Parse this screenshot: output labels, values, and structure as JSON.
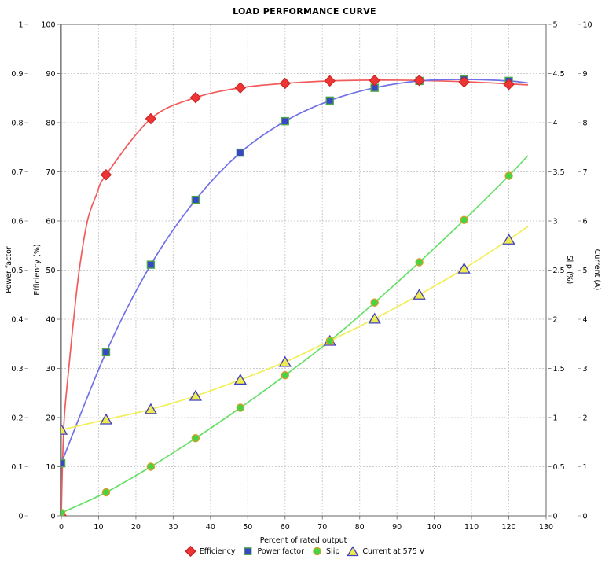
{
  "chart_data": {
    "type": "line",
    "title": "LOAD PERFORMANCE CURVE",
    "xlabel": "Percent of rated output",
    "xlim": [
      0,
      130
    ],
    "x_tick_step": 10,
    "grid": true,
    "legend_position": "bottom",
    "background": "#ffffff",
    "grid_color": "#cccccc",
    "x": [
      0,
      12,
      24,
      36,
      48,
      60,
      72,
      84,
      96,
      108,
      120
    ],
    "axes": [
      {
        "id": "power_factor",
        "label": "Power factor",
        "side": "left",
        "min": 0,
        "max": 1,
        "tick_step": 0.1
      },
      {
        "id": "efficiency",
        "label": "Efficiency (%)",
        "side": "left",
        "min": 0,
        "max": 100,
        "tick_step": 10
      },
      {
        "id": "slip",
        "label": "Slip (%)",
        "side": "right",
        "min": 0,
        "max": 5,
        "tick_step": 0.5
      },
      {
        "id": "current",
        "label": "Current (A)",
        "side": "right",
        "min": 0,
        "max": 10,
        "tick_step": 1
      }
    ],
    "series": [
      {
        "name": "Efficiency",
        "axis": "efficiency",
        "marker": "diamond",
        "line_color": "#f15b5b",
        "marker_fill": "#ee3434",
        "marker_stroke": "#c62222",
        "values": [
          0,
          69.4,
          80.8,
          85.1,
          87.1,
          88.0,
          88.5,
          88.6,
          88.6,
          88.3,
          87.8
        ],
        "curve": [
          [
            0,
            0
          ],
          [
            0.3,
            10
          ],
          [
            0.8,
            20
          ],
          [
            2,
            30
          ],
          [
            3.3,
            40
          ],
          [
            4.8,
            50
          ],
          [
            7,
            60
          ],
          [
            9.5,
            65.5
          ],
          [
            12,
            69.4
          ],
          [
            24,
            80.8
          ],
          [
            36,
            85.1
          ],
          [
            48,
            87.1
          ],
          [
            60,
            88.0
          ],
          [
            72,
            88.5
          ],
          [
            84,
            88.65
          ],
          [
            96,
            88.6
          ],
          [
            108,
            88.35
          ],
          [
            120,
            87.9
          ],
          [
            125,
            87.7
          ]
        ]
      },
      {
        "name": "Power factor",
        "axis": "power_factor",
        "marker": "square",
        "line_color": "#7070e8",
        "marker_fill": "#3a46c8",
        "marker_stroke": "#4aa84a",
        "values": [
          0.107,
          0.333,
          0.511,
          0.643,
          0.739,
          0.803,
          0.845,
          0.871,
          0.885,
          0.888,
          0.885
        ],
        "curve": [
          [
            0,
            0.107
          ],
          [
            12,
            0.333
          ],
          [
            24,
            0.511
          ],
          [
            36,
            0.643
          ],
          [
            48,
            0.739
          ],
          [
            60,
            0.803
          ],
          [
            72,
            0.845
          ],
          [
            84,
            0.871
          ],
          [
            96,
            0.885
          ],
          [
            108,
            0.888
          ],
          [
            120,
            0.885
          ],
          [
            125,
            0.881
          ]
        ]
      },
      {
        "name": "Slip",
        "axis": "slip",
        "marker": "circle",
        "line_color": "#66df66",
        "marker_fill": "#44d444",
        "marker_stroke": "#cfa02a",
        "values": [
          0.03,
          0.24,
          0.5,
          0.79,
          1.1,
          1.43,
          1.78,
          2.17,
          2.58,
          3.01,
          3.46
        ],
        "curve": [
          [
            0,
            0.03
          ],
          [
            12,
            0.24
          ],
          [
            24,
            0.5
          ],
          [
            36,
            0.79
          ],
          [
            48,
            1.1
          ],
          [
            60,
            1.43
          ],
          [
            72,
            1.78
          ],
          [
            84,
            2.17
          ],
          [
            96,
            2.58
          ],
          [
            108,
            3.01
          ],
          [
            120,
            3.46
          ],
          [
            125,
            3.66
          ]
        ]
      },
      {
        "name": "Current at 575 V",
        "axis": "current",
        "marker": "triangle",
        "line_color": "#f2ee56",
        "marker_fill": "#efeb4e",
        "marker_stroke": "#4040c0",
        "values": [
          1.75,
          1.96,
          2.17,
          2.44,
          2.77,
          3.13,
          3.56,
          4.01,
          4.5,
          5.03,
          5.62
        ],
        "curve": [
          [
            0,
            1.75
          ],
          [
            12,
            1.96
          ],
          [
            24,
            2.17
          ],
          [
            36,
            2.44
          ],
          [
            48,
            2.77
          ],
          [
            60,
            3.13
          ],
          [
            72,
            3.56
          ],
          [
            84,
            4.01
          ],
          [
            96,
            4.5
          ],
          [
            108,
            5.03
          ],
          [
            120,
            5.62
          ],
          [
            125,
            5.88
          ]
        ]
      }
    ]
  }
}
